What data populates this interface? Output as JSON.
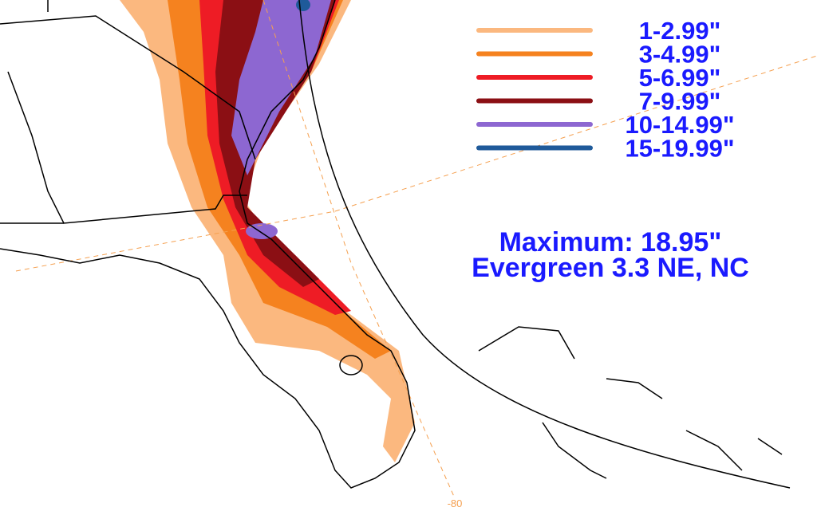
{
  "legend": [
    {
      "label": "1-2.99\"",
      "color": "#fbb87f"
    },
    {
      "label": "3-4.99\"",
      "color": "#f5821f"
    },
    {
      "label": "5-6.99\"",
      "color": "#ee1c25"
    },
    {
      "label": "7-9.99\"",
      "color": "#8b0f14"
    },
    {
      "label": "10-14.99\"",
      "color": "#8d67d1"
    },
    {
      "label": "15-19.99\"",
      "color": "#1f5a9a"
    }
  ],
  "annotation": {
    "line1": "Maximum: 18.95\"",
    "line2": "Evergreen 3.3 NE, NC"
  },
  "longitude_label": "-80"
}
